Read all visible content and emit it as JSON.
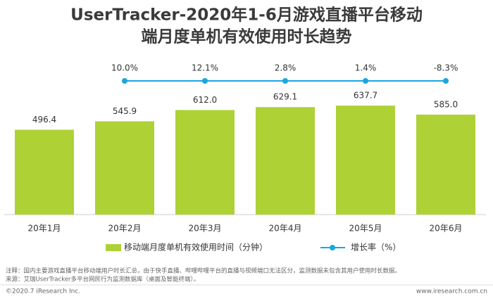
{
  "chart_data": {
    "type": "bar",
    "title": [
      "UserTracker-2020年1-6月游戏直播平台移动",
      "端月度单机有效使用时长趋势"
    ],
    "categories": [
      "20年1月",
      "20年2月",
      "20年3月",
      "20年4月",
      "20年5月",
      "20年6月"
    ],
    "series": [
      {
        "name": "移动端月度单机有效使用时间（分钟）",
        "type": "bar",
        "color": "#aed136",
        "values": [
          496.4,
          545.9,
          612.0,
          629.1,
          637.7,
          585.0
        ],
        "value_labels": [
          "496.4",
          "545.9",
          "612.0",
          "629.1",
          "637.7",
          "585.0"
        ]
      },
      {
        "name": "增长率（%）",
        "type": "line",
        "color": "#1aa6de",
        "values": [
          null,
          10.0,
          12.1,
          2.8,
          1.4,
          -8.3
        ],
        "value_labels": [
          null,
          "10.0%",
          "12.1%",
          "2.8%",
          "1.4%",
          "-8.3%"
        ]
      }
    ],
    "ylim": [
      0,
      700
    ],
    "notes": [
      "注释：国内主要游戏直播平台移动端用户时长汇总，由于快手直播、哔哩哔哩平台的直播与视频端口无法区分，监测数据未包含其用户使用时长数据。",
      "来源：艾瑞UserTracker多平台网民行为监测数据库（桌面及智能终端）。"
    ],
    "copyright": "©2020.7 iResearch Inc.",
    "website": "www.iresearch.com.cn"
  }
}
